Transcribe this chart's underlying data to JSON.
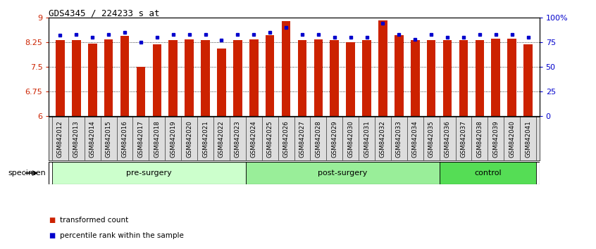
{
  "title": "GDS4345 / 224233_s_at",
  "samples": [
    "GSM842012",
    "GSM842013",
    "GSM842014",
    "GSM842015",
    "GSM842016",
    "GSM842017",
    "GSM842018",
    "GSM842019",
    "GSM842020",
    "GSM842021",
    "GSM842022",
    "GSM842023",
    "GSM842024",
    "GSM842025",
    "GSM842026",
    "GSM842027",
    "GSM842028",
    "GSM842029",
    "GSM842030",
    "GSM842031",
    "GSM842032",
    "GSM842033",
    "GSM842034",
    "GSM842035",
    "GSM842036",
    "GSM842037",
    "GSM842038",
    "GSM842039",
    "GSM842040",
    "GSM842041"
  ],
  "red_values": [
    8.3,
    8.3,
    8.21,
    8.34,
    8.43,
    7.49,
    8.19,
    8.3,
    8.34,
    8.3,
    8.06,
    8.3,
    8.32,
    8.45,
    8.88,
    8.3,
    8.32,
    8.3,
    8.24,
    8.3,
    8.92,
    8.46,
    8.3,
    8.3,
    8.3,
    8.3,
    8.3,
    8.35,
    8.35,
    8.19
  ],
  "blue_values": [
    82,
    83,
    80,
    83,
    85,
    75,
    80,
    83,
    83,
    83,
    77,
    83,
    83,
    85,
    90,
    83,
    83,
    80,
    80,
    80,
    94,
    83,
    78,
    83,
    80,
    80,
    83,
    83,
    83,
    80
  ],
  "groups": [
    {
      "label": "pre-surgery",
      "start": 0,
      "end": 11,
      "color": "#ccffcc"
    },
    {
      "label": "post-surgery",
      "start": 12,
      "end": 23,
      "color": "#99ee99"
    },
    {
      "label": "control",
      "start": 24,
      "end": 29,
      "color": "#55dd55"
    }
  ],
  "ylim_left": [
    6,
    9
  ],
  "ylim_right": [
    0,
    100
  ],
  "yticks_left": [
    6,
    6.75,
    7.5,
    8.25,
    9
  ],
  "yticks_right": [
    0,
    25,
    50,
    75,
    100
  ],
  "ytick_labels_right": [
    "0",
    "25",
    "50",
    "75",
    "100%"
  ],
  "bar_color": "#cc2200",
  "dot_color": "#0000cc",
  "legend_red_label": "transformed count",
  "legend_blue_label": "percentile rank within the sample",
  "specimen_label": "specimen",
  "xtick_bg": "#dddddd",
  "bar_width": 0.55
}
